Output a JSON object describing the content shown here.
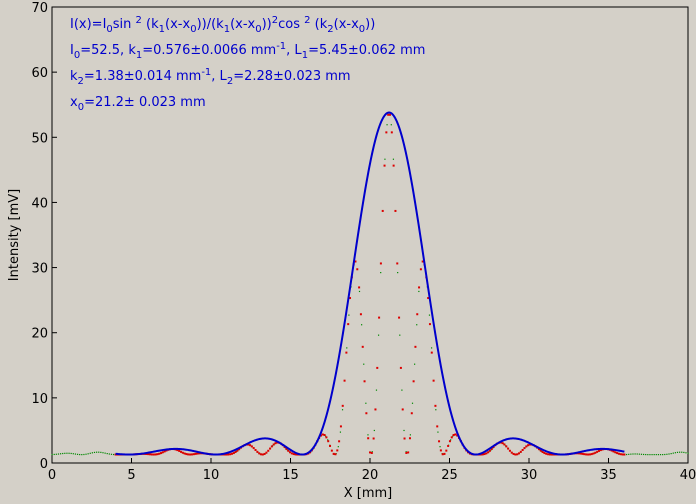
{
  "chart_data": {
    "type": "scatter",
    "xlabel": "X [mm]",
    "ylabel": "Intensity [mV]",
    "xlim": [
      0,
      40
    ],
    "ylim": [
      0,
      70
    ],
    "x_ticks": [
      0,
      5,
      10,
      15,
      20,
      25,
      30,
      35,
      40
    ],
    "y_ticks": [
      0,
      10,
      20,
      30,
      40,
      50,
      60,
      70
    ],
    "grid": false,
    "colors": {
      "fit": "#0000cc",
      "data": "#dd0000",
      "background_data": "#008800",
      "annotation": "#0000cc"
    },
    "annotations": {
      "formula": "I(x)=I0sin 2 (k1(x-x0))/(k1(x-x0))2cos 2 (k2(x-x0))",
      "line1": "I0=52.5,  k1=0.576±0.0066 mm-1,   L1=5.45±0.062 mm",
      "line2": "k2=1.38±0.014 mm-1,   L2=2.28±0.023 mm",
      "line3": "x0=21.2±   0.023 mm"
    },
    "fit_params": {
      "I0": 52.5,
      "k1": 0.576,
      "k2": 1.38,
      "x0": 21.2,
      "offset": 1.3
    },
    "series": [
      {
        "type": "line",
        "x_range": [
          4,
          36
        ]
      },
      {
        "type": "scatter",
        "x_range": [
          4,
          36
        ]
      },
      {
        "type": "scatter",
        "x_range": [
          0,
          40
        ]
      }
    ]
  }
}
